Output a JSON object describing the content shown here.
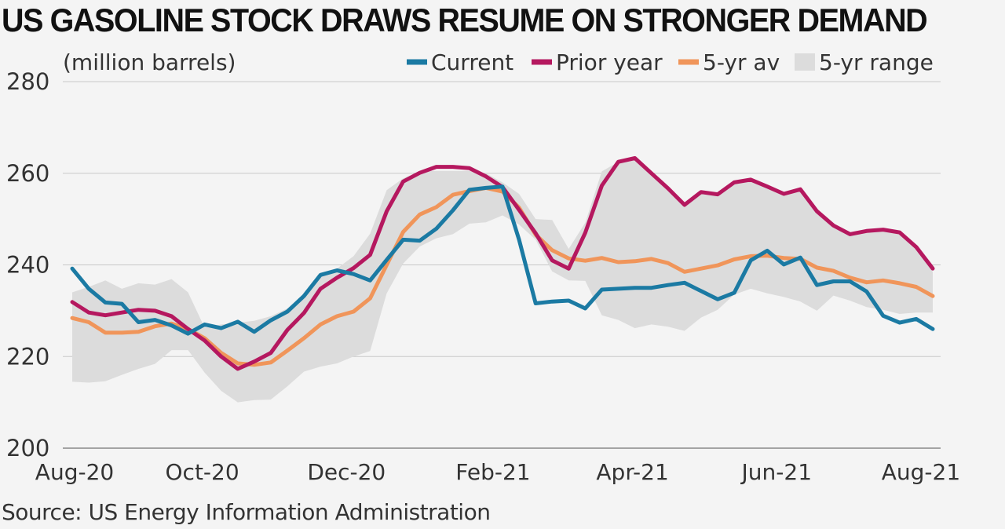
{
  "title": "US GASOLINE STOCK DRAWS RESUME ON STRONGER DEMAND",
  "unit_label": "(million barrels)",
  "source": "Source: US Energy Information Administration",
  "chart_data": {
    "type": "line",
    "ylim": [
      200,
      280
    ],
    "yticks": [
      200,
      220,
      240,
      260,
      280
    ],
    "grid": true,
    "legend_position": "top-right",
    "x_start": "2020-08-07",
    "x_interval_days": 7,
    "x_tick_labels": [
      {
        "label": "Aug-20",
        "date": "2020-08-01"
      },
      {
        "label": "Oct-20",
        "date": "2020-10-01"
      },
      {
        "label": "Dec-20",
        "date": "2020-12-01"
      },
      {
        "label": "Feb-21",
        "date": "2021-02-01"
      },
      {
        "label": "Apr-21",
        "date": "2021-04-01"
      },
      {
        "label": "Jun-21",
        "date": "2021-06-01"
      },
      {
        "label": "Aug-21",
        "date": "2021-08-01"
      }
    ],
    "series": [
      {
        "name": "Current",
        "color": "#1b7aa3",
        "values": [
          239.2,
          234.8,
          231.8,
          231.5,
          227.5,
          228.0,
          226.8,
          225.0,
          227.0,
          226.2,
          227.6,
          225.4,
          227.9,
          229.8,
          233.2,
          237.8,
          238.8,
          238.0,
          236.6,
          241.1,
          245.5,
          245.3,
          247.9,
          251.9,
          256.4,
          256.8,
          257.1,
          245.5,
          231.6,
          232.0,
          232.2,
          230.5,
          234.6,
          234.8,
          235.0,
          235.0,
          235.6,
          236.1,
          234.3,
          232.5,
          233.9,
          241.0,
          243.1,
          240.1,
          241.6,
          235.6,
          236.4,
          236.4,
          234.2,
          228.9,
          227.4,
          228.2,
          226.0
        ]
      },
      {
        "name": "Prior year",
        "color": "#b5185f",
        "values": [
          231.9,
          229.6,
          229.0,
          229.6,
          230.2,
          230.0,
          228.8,
          226.0,
          223.5,
          220.0,
          217.3,
          218.9,
          220.8,
          225.8,
          229.5,
          234.8,
          237.2,
          239.3,
          242.2,
          251.7,
          258.2,
          260.1,
          261.4,
          261.4,
          261.1,
          259.3,
          257.0,
          252.0,
          246.9,
          241.0,
          239.2,
          247.0,
          257.3,
          262.5,
          263.3,
          260.0,
          256.7,
          253.1,
          255.9,
          255.4,
          258.0,
          258.6,
          257.1,
          255.5,
          256.5,
          251.7,
          248.6,
          246.7,
          247.4,
          247.7,
          247.1,
          243.9,
          239.2
        ]
      },
      {
        "name": "5-yr av",
        "color": "#f0955a",
        "values": [
          228.4,
          227.5,
          225.2,
          225.2,
          225.4,
          226.6,
          227.2,
          226.0,
          224.0,
          220.8,
          218.5,
          218.2,
          218.7,
          221.3,
          224.0,
          227.0,
          228.8,
          229.8,
          232.7,
          240.0,
          247.2,
          251.0,
          252.6,
          255.3,
          256.1,
          256.8,
          256.0,
          252.5,
          246.6,
          243.2,
          241.4,
          240.9,
          241.5,
          240.6,
          240.8,
          241.3,
          240.4,
          238.5,
          239.2,
          239.9,
          241.2,
          241.9,
          242.0,
          241.5,
          241.3,
          239.4,
          238.7,
          237.2,
          236.2,
          236.6,
          236.0,
          235.2,
          233.2
        ]
      },
      {
        "name": "5-yr range",
        "color": "#dcdcdc",
        "type": "band",
        "min": [
          214.5,
          214.3,
          214.6,
          216.0,
          217.3,
          218.4,
          221.4,
          221.4,
          216.5,
          212.5,
          210.0,
          210.5,
          210.6,
          213.5,
          216.7,
          217.8,
          218.5,
          220.0,
          221.2,
          233.8,
          240.3,
          244.0,
          245.8,
          246.7,
          249.0,
          249.3,
          250.8,
          248.8,
          245.5,
          238.6,
          236.6,
          236.5,
          229.0,
          228.0,
          226.2,
          227.0,
          226.5,
          225.6,
          228.5,
          230.2,
          233.5,
          234.8,
          233.8,
          233.0,
          232.0,
          230.0,
          233.3,
          232.2,
          230.8,
          230.2,
          229.3,
          229.6,
          229.6
        ],
        "max": [
          234.0,
          235.2,
          236.6,
          234.8,
          236.0,
          235.7,
          236.9,
          234.0,
          226.3,
          227.0,
          227.4,
          227.8,
          228.8,
          230.5,
          233.4,
          237.5,
          239.2,
          241.9,
          246.8,
          256.3,
          258.9,
          260.4,
          260.5,
          260.5,
          260.5,
          260.0,
          258.0,
          255.5,
          250.0,
          249.8,
          243.5,
          249.2,
          260.4,
          262.5,
          263.3,
          260.0,
          256.7,
          253.1,
          255.9,
          255.4,
          258.0,
          258.6,
          257.1,
          255.5,
          256.5,
          251.7,
          248.6,
          246.7,
          247.4,
          247.7,
          247.1,
          243.9,
          238.5
        ]
      }
    ]
  }
}
